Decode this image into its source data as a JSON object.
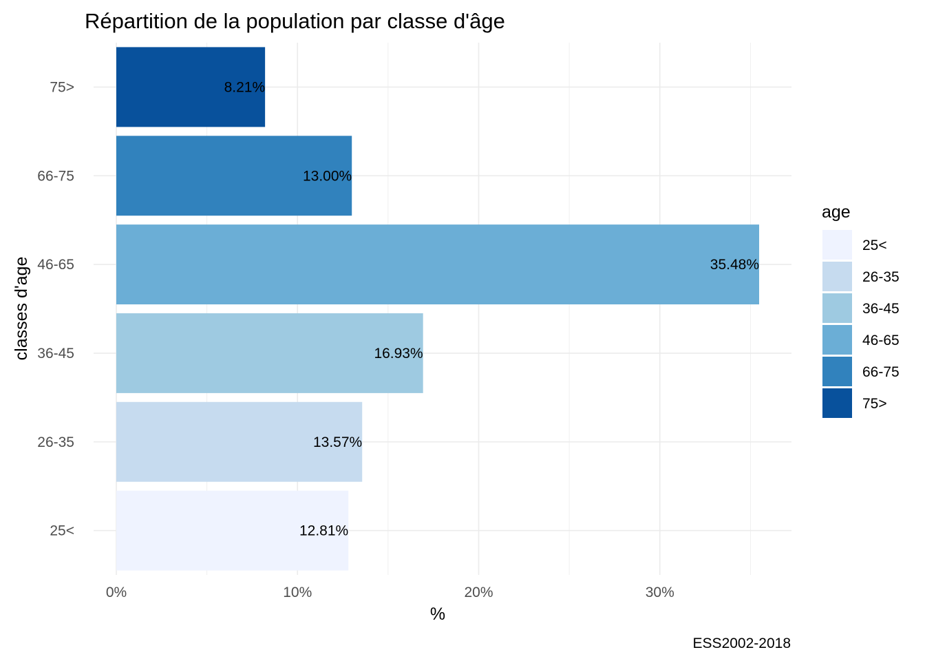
{
  "chart_data": {
    "type": "bar",
    "orientation": "horizontal",
    "title": "Répartition de la population par classe d'âge",
    "xlabel": "%",
    "ylabel": "classes d'age",
    "caption": "ESS2002-2018",
    "categories": [
      "25<",
      "26-35",
      "36-45",
      "46-65",
      "66-75",
      "75>"
    ],
    "values": [
      12.81,
      13.57,
      16.93,
      35.48,
      13.0,
      8.21
    ],
    "value_labels": [
      "12.81%",
      "13.57%",
      "16.93%",
      "35.48%",
      "13.00%",
      "8.21%"
    ],
    "colors": [
      "#eff3ff",
      "#c6dbef",
      "#9ecae1",
      "#6baed6",
      "#3182bd",
      "#08519c"
    ],
    "xlim": [
      0,
      37.25
    ],
    "x_ticks": [
      0,
      10,
      20,
      30
    ],
    "x_tick_labels": [
      "0%",
      "10%",
      "20%",
      "30%"
    ],
    "grid": true,
    "legend": {
      "title": "age",
      "position": "right",
      "entries": [
        "25<",
        "26-35",
        "36-45",
        "46-65",
        "66-75",
        "75>"
      ]
    }
  }
}
